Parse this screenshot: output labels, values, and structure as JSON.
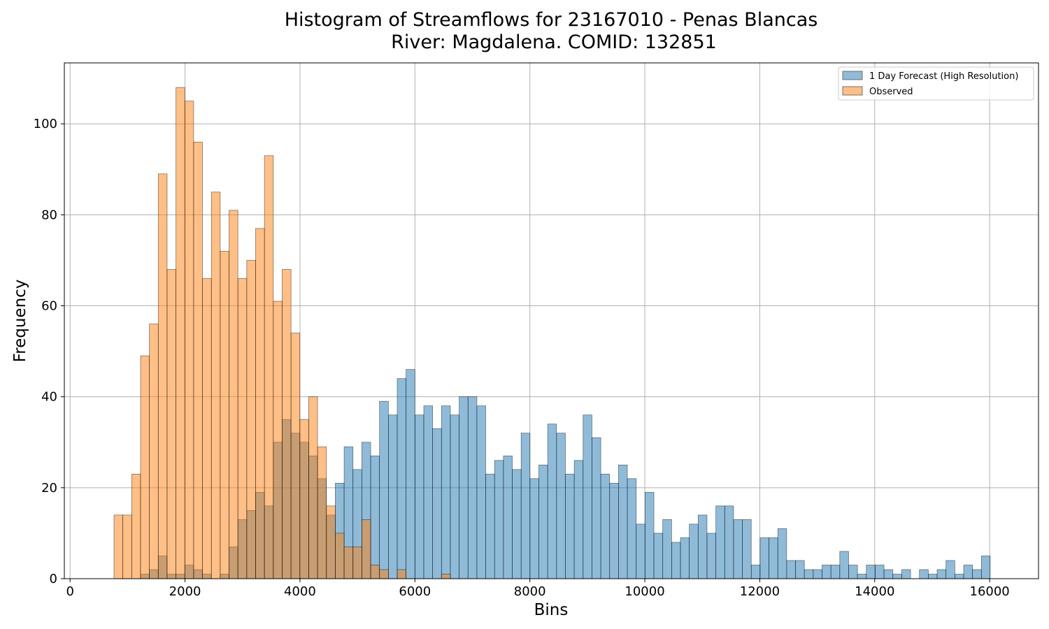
{
  "chart_data": {
    "type": "bar",
    "title": "Histogram of Streamflows for 23167010 - Penas Blancas",
    "subtitle": "River: Magdalena. COMID: 132851",
    "xlabel": "Bins",
    "ylabel": "Frequency",
    "xlim": [
      -100,
      16850
    ],
    "ylim": [
      0,
      113.4
    ],
    "xticks": [
      0,
      2000,
      4000,
      6000,
      8000,
      10000,
      12000,
      14000,
      16000
    ],
    "yticks": [
      0,
      20,
      40,
      60,
      80,
      100
    ],
    "grid": true,
    "legend_position": "top-right",
    "series": [
      {
        "name": "1 Day Forecast (High Resolution)",
        "color": "#1f77b4",
        "opacity": 0.5,
        "bin_width": 154,
        "bins": [
          [
            1226,
            1
          ],
          [
            1380,
            2
          ],
          [
            1534,
            5
          ],
          [
            1688,
            1
          ],
          [
            1842,
            1
          ],
          [
            1996,
            3
          ],
          [
            2150,
            2
          ],
          [
            2304,
            1
          ],
          [
            2612,
            1
          ],
          [
            2766,
            7
          ],
          [
            2920,
            13
          ],
          [
            3074,
            15
          ],
          [
            3228,
            19
          ],
          [
            3382,
            16
          ],
          [
            3536,
            30
          ],
          [
            3690,
            35
          ],
          [
            3844,
            32
          ],
          [
            3998,
            30
          ],
          [
            4152,
            27
          ],
          [
            4306,
            22
          ],
          [
            4460,
            14
          ],
          [
            4614,
            21
          ],
          [
            4768,
            29
          ],
          [
            4922,
            24
          ],
          [
            5076,
            30
          ],
          [
            5230,
            27
          ],
          [
            5384,
            39
          ],
          [
            5538,
            36
          ],
          [
            5692,
            44
          ],
          [
            5846,
            46
          ],
          [
            6000,
            36
          ],
          [
            6154,
            38
          ],
          [
            6308,
            33
          ],
          [
            6462,
            38
          ],
          [
            6616,
            36
          ],
          [
            6770,
            40
          ],
          [
            6924,
            40
          ],
          [
            7078,
            38
          ],
          [
            7232,
            23
          ],
          [
            7386,
            26
          ],
          [
            7540,
            27
          ],
          [
            7694,
            24
          ],
          [
            7848,
            32
          ],
          [
            8002,
            22
          ],
          [
            8156,
            25
          ],
          [
            8310,
            34
          ],
          [
            8464,
            32
          ],
          [
            8618,
            23
          ],
          [
            8772,
            26
          ],
          [
            8926,
            36
          ],
          [
            9080,
            31
          ],
          [
            9234,
            23
          ],
          [
            9388,
            21
          ],
          [
            9542,
            25
          ],
          [
            9696,
            22
          ],
          [
            9850,
            12
          ],
          [
            10004,
            19
          ],
          [
            10158,
            10
          ],
          [
            10312,
            13
          ],
          [
            10466,
            8
          ],
          [
            10620,
            9
          ],
          [
            10774,
            12
          ],
          [
            10928,
            14
          ],
          [
            11082,
            10
          ],
          [
            11236,
            16
          ],
          [
            11390,
            16
          ],
          [
            11544,
            13
          ],
          [
            11698,
            13
          ],
          [
            11852,
            3
          ],
          [
            12006,
            9
          ],
          [
            12160,
            9
          ],
          [
            12314,
            11
          ],
          [
            12468,
            4
          ],
          [
            12622,
            4
          ],
          [
            12776,
            2
          ],
          [
            12930,
            2
          ],
          [
            13084,
            3
          ],
          [
            13238,
            3
          ],
          [
            13392,
            6
          ],
          [
            13546,
            3
          ],
          [
            13700,
            1
          ],
          [
            13854,
            3
          ],
          [
            14008,
            3
          ],
          [
            14162,
            2
          ],
          [
            14316,
            1
          ],
          [
            14470,
            2
          ],
          [
            14778,
            2
          ],
          [
            14932,
            1
          ],
          [
            15086,
            2
          ],
          [
            15240,
            4
          ],
          [
            15394,
            1
          ],
          [
            15548,
            3
          ],
          [
            15702,
            2
          ],
          [
            15856,
            5
          ]
        ]
      },
      {
        "name": "Observed",
        "color": "#ff7f0e",
        "opacity": 0.5,
        "bin_width": 154,
        "bins": [
          [
            764,
            14
          ],
          [
            918,
            14
          ],
          [
            1072,
            23
          ],
          [
            1226,
            49
          ],
          [
            1380,
            56
          ],
          [
            1534,
            89
          ],
          [
            1688,
            68
          ],
          [
            1842,
            108
          ],
          [
            1996,
            105
          ],
          [
            2150,
            96
          ],
          [
            2304,
            66
          ],
          [
            2458,
            85
          ],
          [
            2612,
            72
          ],
          [
            2766,
            81
          ],
          [
            2920,
            66
          ],
          [
            3074,
            70
          ],
          [
            3228,
            77
          ],
          [
            3382,
            93
          ],
          [
            3536,
            61
          ],
          [
            3690,
            68
          ],
          [
            3844,
            54
          ],
          [
            3998,
            35
          ],
          [
            4152,
            40
          ],
          [
            4306,
            29
          ],
          [
            4460,
            16
          ],
          [
            4614,
            10
          ],
          [
            4768,
            7
          ],
          [
            4922,
            7
          ],
          [
            5076,
            13
          ],
          [
            5230,
            3
          ],
          [
            5384,
            2
          ],
          [
            5692,
            2
          ],
          [
            6462,
            1
          ]
        ]
      }
    ]
  }
}
